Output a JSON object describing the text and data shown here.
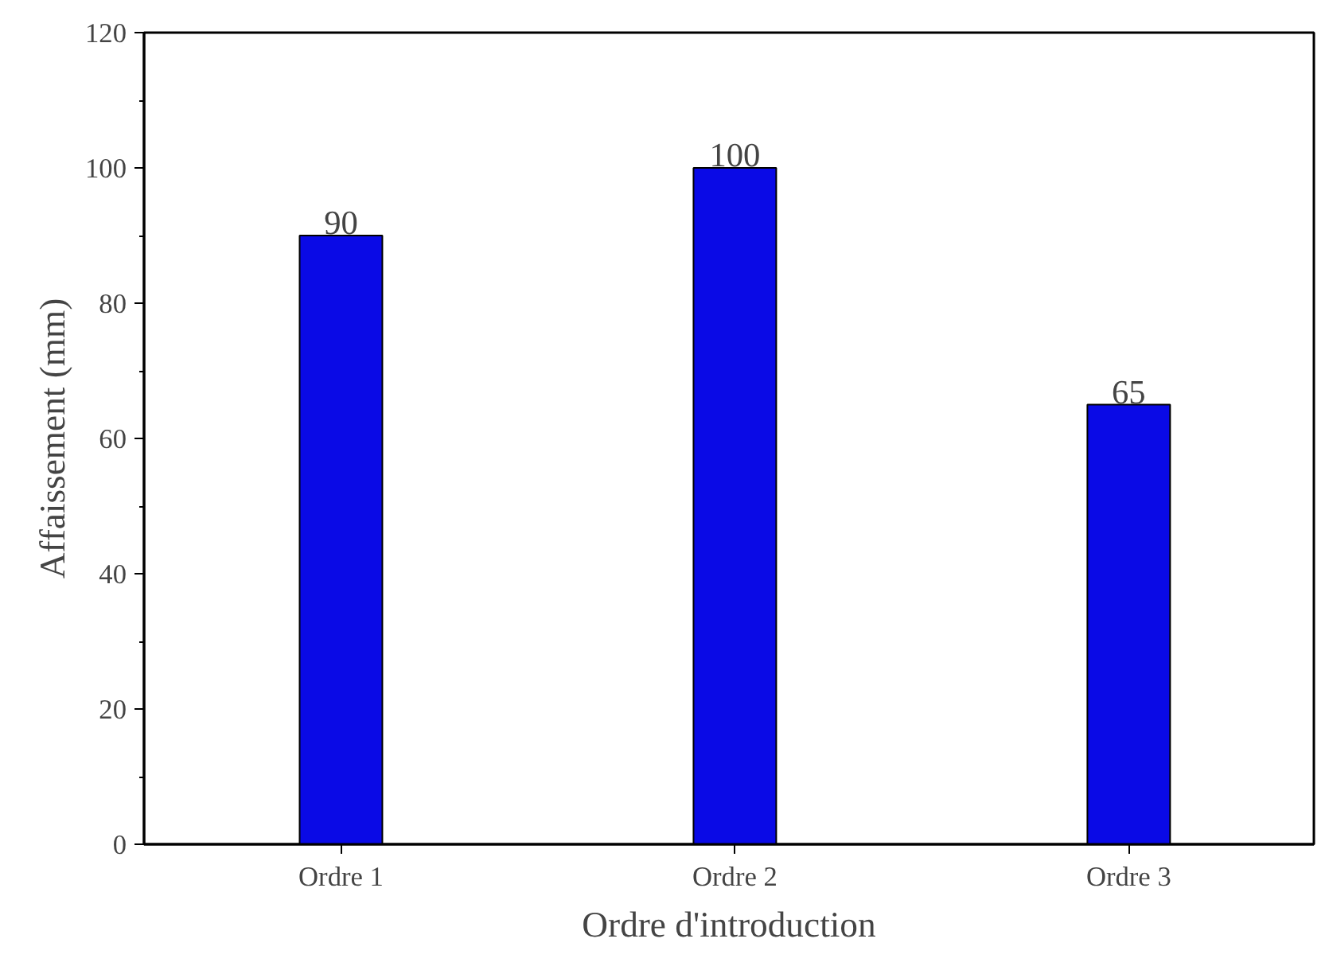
{
  "chart_data": {
    "type": "bar",
    "xlabel": "Ordre d'introduction",
    "ylabel": "Affaissement (mm)",
    "categories": [
      "Ordre 1",
      "Ordre 2",
      "Ordre 3"
    ],
    "values": [
      90,
      100,
      65
    ],
    "color": "#0a0ae6",
    "ylim": [
      0,
      120
    ],
    "yticks": [
      0,
      20,
      40,
      60,
      80,
      100,
      120
    ],
    "grid": false,
    "data_labels": true
  }
}
